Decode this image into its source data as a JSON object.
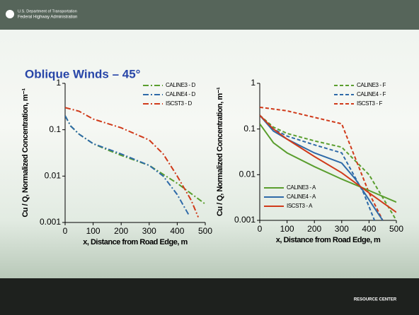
{
  "header": {
    "line1": "U.S. Department of Transportation",
    "line2": "Federal Highway Administration"
  },
  "slide_title": "Oblique Winds – 45°",
  "footer": "RESOURCE CENTER",
  "chart_data": [
    {
      "type": "line",
      "ylabel": "Cu / Q, Normalized Concentration, m⁻¹",
      "xlabel": "x, Distance from Road Edge, m",
      "xlim": [
        0,
        500
      ],
      "xticks": [
        0,
        100,
        200,
        300,
        400,
        500
      ],
      "ylim": [
        0.001,
        1
      ],
      "yticks": [
        1,
        0.1,
        0.01,
        0.001
      ],
      "log_y": true,
      "series": [
        {
          "name": "CALINE3 - D",
          "color": "#5a9e2e",
          "dash": "dash-dot",
          "legend": "upper right",
          "x": [
            0,
            20,
            50,
            100,
            150,
            200,
            300,
            400,
            500
          ],
          "values": [
            0.2,
            0.12,
            0.08,
            0.05,
            0.037,
            0.028,
            0.017,
            0.007,
            0.0025
          ]
        },
        {
          "name": "CALINE4 - D",
          "color": "#2e6aa8",
          "dash": "dash-dot",
          "legend": "upper right",
          "x": [
            0,
            20,
            50,
            100,
            200,
            300,
            350,
            400,
            440
          ],
          "values": [
            0.2,
            0.12,
            0.08,
            0.05,
            0.03,
            0.017,
            0.01,
            0.004,
            0.0015
          ]
        },
        {
          "name": "ISCST3 - D",
          "color": "#d03a1a",
          "dash": "dash-dot",
          "legend": "upper right",
          "x": [
            0,
            50,
            100,
            200,
            300,
            350,
            400,
            450,
            475
          ],
          "values": [
            0.3,
            0.25,
            0.17,
            0.11,
            0.06,
            0.03,
            0.01,
            0.003,
            0.0013
          ]
        }
      ]
    },
    {
      "type": "line",
      "ylabel": "Cu / Q, Normalized Concentration, m⁻¹",
      "xlabel": "x, Distance from Road Edge, m",
      "xlim": [
        0,
        500
      ],
      "xticks": [
        0,
        100,
        200,
        300,
        400,
        500
      ],
      "ylim": [
        0.001,
        1
      ],
      "yticks": [
        1,
        0.1,
        0.01,
        0.001
      ],
      "log_y": true,
      "series": [
        {
          "name": "CALINE3 - F",
          "color": "#5a9e2e",
          "dash": "dashed",
          "legend": "upper right",
          "x": [
            0,
            50,
            100,
            200,
            300,
            400,
            500
          ],
          "values": [
            0.2,
            0.11,
            0.08,
            0.055,
            0.04,
            0.01,
            0.001
          ]
        },
        {
          "name": "CALINE4 - F",
          "color": "#2e6aa8",
          "dash": "dashed",
          "legend": "upper right",
          "x": [
            0,
            50,
            100,
            200,
            300,
            380,
            420
          ],
          "values": [
            0.2,
            0.1,
            0.07,
            0.045,
            0.03,
            0.004,
            0.001
          ]
        },
        {
          "name": "ISCST3 - F",
          "color": "#d03a1a",
          "dash": "dashed",
          "legend": "upper right",
          "x": [
            0,
            100,
            200,
            300,
            400,
            450
          ],
          "values": [
            0.3,
            0.25,
            0.18,
            0.13,
            0.004,
            0.001
          ]
        },
        {
          "name": "CALINE3 - A",
          "color": "#5a9e2e",
          "dash": "solid",
          "legend": "lower left",
          "x": [
            0,
            50,
            100,
            200,
            300,
            400,
            500
          ],
          "values": [
            0.13,
            0.05,
            0.03,
            0.015,
            0.008,
            0.0045,
            0.0025
          ]
        },
        {
          "name": "CALINE4 - A",
          "color": "#2e6aa8",
          "dash": "solid",
          "legend": "lower left",
          "x": [
            0,
            50,
            100,
            200,
            300,
            350,
            450
          ],
          "values": [
            0.2,
            0.09,
            0.06,
            0.03,
            0.018,
            0.008,
            0.001
          ]
        },
        {
          "name": "ISCST3 - A",
          "color": "#d03a1a",
          "dash": "solid",
          "legend": "lower left",
          "x": [
            0,
            50,
            100,
            200,
            300,
            400,
            500
          ],
          "values": [
            0.2,
            0.1,
            0.06,
            0.025,
            0.011,
            0.004,
            0.0015
          ]
        }
      ]
    }
  ]
}
